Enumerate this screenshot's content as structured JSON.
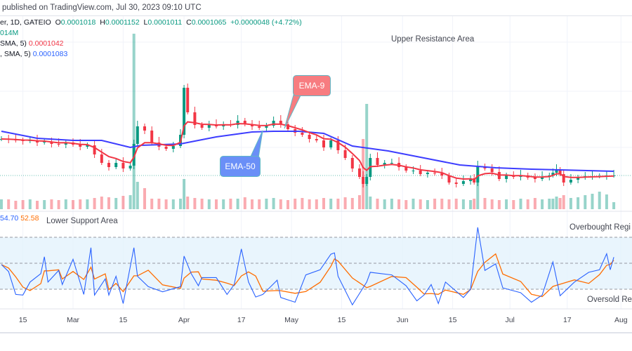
{
  "header": {
    "published": "published on TradingView.com, Jul 30, 2023 09:10 UTC",
    "symbol_tail": "er, 1D, GATEIO",
    "open_label": "O",
    "open": "0.0001018",
    "high_label": "H",
    "high": "0.0001152",
    "low_label": "L",
    "low": "0.0001011",
    "close_label": "C",
    "close": "0.0001065",
    "change": "+0.0000048 (+4.72%)",
    "volume": "014M",
    "ema9_legend": "SMA, 5)",
    "ema9_value": "0.0001042",
    "ema50_legend": ", SMA, 5)",
    "ema50_value": "0.0001083"
  },
  "rsi_legend": {
    "rsi_value": "54.70",
    "rsi_ma_value": "52.58"
  },
  "annotations": {
    "upper": "Upper Resistance Area",
    "lower": "Lower Support Area",
    "overbought": "Overbought Regi",
    "oversold": "Oversold Re",
    "ema9": "EMA-9",
    "ema50": "EMA-50"
  },
  "colors": {
    "up": "#089981",
    "down": "#f23645",
    "ema9": "#f23645",
    "ema50": "#3d3dff",
    "rsi": "#2962ff",
    "rsi_ma": "#ff6d00",
    "rsi_band": "#e3f2fd"
  },
  "chart_data": [
    {
      "type": "candlestick",
      "title": "",
      "x_ticks": [
        "15",
        "Mar",
        "15",
        "Apr",
        "17",
        "May",
        "15",
        "Jun",
        "15",
        "Jul",
        "17",
        "Aug"
      ],
      "last_price": 0.0001065,
      "grid": true,
      "series": [
        {
          "date": "Feb 9",
          "close": 0.0001221,
          "volume": 1.4
        },
        {
          "date": "Feb 11",
          "close": 0.0001218,
          "volume": 1.4
        },
        {
          "date": "Feb 13",
          "close": 0.0001215,
          "volume": 1.2
        },
        {
          "date": "Feb 15",
          "close": 0.0001212,
          "volume": 1.3
        },
        {
          "date": "Feb 17",
          "close": 0.0001215,
          "volume": 1.4
        },
        {
          "date": "Feb 19",
          "close": 0.0001206,
          "volume": 1.2
        },
        {
          "date": "Feb 21",
          "close": 0.0001209,
          "volume": 1.3
        },
        {
          "date": "Feb 23",
          "close": 0.00012,
          "volume": 1.4
        },
        {
          "date": "Feb 25",
          "close": 0.0001197,
          "volume": 1.3
        },
        {
          "date": "Feb 27",
          "close": 0.0001206,
          "volume": 1.4
        },
        {
          "date": "Mar 1",
          "close": 0.0001197,
          "volume": 1.3
        },
        {
          "date": "Mar 3",
          "close": 0.0001188,
          "volume": 1.4
        },
        {
          "date": "Mar 5",
          "close": 0.0001194,
          "volume": 1.4
        },
        {
          "date": "Mar 7",
          "close": 0.0001155,
          "volume": 1.6
        },
        {
          "date": "Mar 9",
          "close": 0.0001119,
          "volume": 1.8
        },
        {
          "date": "Mar 11",
          "close": 0.0001101,
          "volume": 1.7
        },
        {
          "date": "Mar 13",
          "close": 0.0001119,
          "volume": 1.6
        },
        {
          "date": "Mar 15",
          "close": 0.0001095,
          "volume": 1.9
        },
        {
          "date": "Mar 17",
          "close": 0.0001107,
          "volume": 2.0
        },
        {
          "date": "Mar 18",
          "close": 0.00012,
          "volume": 25
        },
        {
          "date": "Mar 19",
          "close": 0.0001275,
          "volume": 3.9
        },
        {
          "date": "Mar 21",
          "close": 0.0001257,
          "volume": 3.0
        },
        {
          "date": "Mar 23",
          "close": 0.0001206,
          "volume": 1.5
        },
        {
          "date": "Mar 25",
          "close": 0.0001188,
          "volume": 1.5
        },
        {
          "date": "Mar 27",
          "close": 0.0001179,
          "volume": 1.4
        },
        {
          "date": "Mar 29",
          "close": 0.0001191,
          "volume": 1.4
        },
        {
          "date": "Mar 31",
          "close": 0.0001239,
          "volume": 1.5
        },
        {
          "date": "Apr 1",
          "close": 0.000144,
          "volume": 4.3
        },
        {
          "date": "Apr 2",
          "close": 0.0001335,
          "volume": 1.8
        },
        {
          "date": "Apr 4",
          "close": 0.0001281,
          "volume": 1.6
        },
        {
          "date": "Apr 6",
          "close": 0.0001269,
          "volume": 1.5
        },
        {
          "date": "Apr 8",
          "close": 0.0001281,
          "volume": 1.4
        },
        {
          "date": "Apr 10",
          "close": 0.0001275,
          "volume": 1.4
        },
        {
          "date": "Apr 12",
          "close": 0.0001284,
          "volume": 1.4
        },
        {
          "date": "Apr 14",
          "close": 0.0001281,
          "volume": 1.5
        },
        {
          "date": "Apr 16",
          "close": 0.0001299,
          "volume": 1.5
        },
        {
          "date": "Apr 18",
          "close": 0.0001284,
          "volume": 1.7
        },
        {
          "date": "Apr 20",
          "close": 0.0001275,
          "volume": 1.4
        },
        {
          "date": "Apr 22",
          "close": 0.0001269,
          "volume": 1.4
        },
        {
          "date": "Apr 24",
          "close": 0.0001278,
          "volume": 1.5
        },
        {
          "date": "Apr 26",
          "close": 0.0001299,
          "volume": 1.6
        },
        {
          "date": "Apr 28",
          "close": 0.0001284,
          "volume": 1.4
        },
        {
          "date": "Apr 30",
          "close": 0.0001263,
          "volume": 1.3
        },
        {
          "date": "May 2",
          "close": 0.0001248,
          "volume": 1.5
        },
        {
          "date": "May 4",
          "close": 0.0001239,
          "volume": 1.6
        },
        {
          "date": "May 6",
          "close": 0.0001221,
          "volume": 1.4
        },
        {
          "date": "May 8",
          "close": 0.0001215,
          "volume": 1.4
        },
        {
          "date": "May 10",
          "close": 0.0001185,
          "volume": 1.6
        },
        {
          "date": "May 12",
          "close": 0.0001215,
          "volume": 1.5
        },
        {
          "date": "May 14",
          "close": 0.0001173,
          "volume": 1.5
        },
        {
          "date": "May 16",
          "close": 0.000114,
          "volume": 1.7
        },
        {
          "date": "May 18",
          "close": 0.0001095,
          "volume": 1.6
        },
        {
          "date": "May 20",
          "close": 0.0001059,
          "volume": 2.0
        },
        {
          "date": "May 21",
          "close": 0.0001029,
          "volume": 10
        },
        {
          "date": "May 22",
          "close": 0.0001059,
          "volume": 15
        },
        {
          "date": "May 23",
          "close": 0.000114,
          "volume": 1.8
        },
        {
          "date": "May 25",
          "close": 0.000111,
          "volume": 1.5
        },
        {
          "date": "May 27",
          "close": 0.0001119,
          "volume": 1.4
        },
        {
          "date": "May 29",
          "close": 0.0001119,
          "volume": 1.5
        },
        {
          "date": "May 31",
          "close": 0.0001101,
          "volume": 1.4
        },
        {
          "date": "Jun 2",
          "close": 0.0001086,
          "volume": 1.3
        },
        {
          "date": "Jun 4",
          "close": 0.0001086,
          "volume": 1.5
        },
        {
          "date": "Jun 6",
          "close": 0.0001071,
          "volume": 1.4
        },
        {
          "date": "Jun 8",
          "close": 0.0001077,
          "volume": 1.3
        },
        {
          "date": "Jun 10",
          "close": 0.0001074,
          "volume": 1.5
        },
        {
          "date": "Jun 12",
          "close": 0.0001065,
          "volume": 1.5
        },
        {
          "date": "Jun 14",
          "close": 0.0001035,
          "volume": 1.4
        },
        {
          "date": "Jun 16",
          "close": 0.0001029,
          "volume": 1.5
        },
        {
          "date": "Jun 18",
          "close": 0.0001041,
          "volume": 1.4
        },
        {
          "date": "Jun 20",
          "close": 0.0001053,
          "volume": 1.3
        },
        {
          "date": "Jun 21",
          "close": 0.0001035,
          "volume": 1.5
        },
        {
          "date": "Jun 22",
          "close": 0.0001104,
          "volume": 4.7
        },
        {
          "date": "Jun 24",
          "close": 0.0001095,
          "volume": 1.6
        },
        {
          "date": "Jun 26",
          "close": 0.000108,
          "volume": 1.4
        },
        {
          "date": "Jun 28",
          "close": 0.000105,
          "volume": 1.3
        },
        {
          "date": "Jun 30",
          "close": 0.0001065,
          "volume": 1.4
        },
        {
          "date": "Jul 2",
          "close": 0.0001059,
          "volume": 1.3
        },
        {
          "date": "Jul 4",
          "close": 0.0001065,
          "volume": 1.5
        },
        {
          "date": "Jul 6",
          "close": 0.0001056,
          "volume": 1.4
        },
        {
          "date": "Jul 8",
          "close": 0.000105,
          "volume": 1.6
        },
        {
          "date": "Jul 10",
          "close": 0.0001059,
          "volume": 1.4
        },
        {
          "date": "Jul 12",
          "close": 0.0001065,
          "volume": 1.5
        },
        {
          "date": "Jul 13",
          "close": 0.0001077,
          "volume": 1.5
        },
        {
          "date": "Jul 14",
          "close": 0.0001089,
          "volume": 1.8
        },
        {
          "date": "Jul 15",
          "close": 0.0001071,
          "volume": 1.6
        },
        {
          "date": "Jul 16",
          "close": 0.0001035,
          "volume": 2.0
        },
        {
          "date": "Jul 18",
          "close": 0.0001047,
          "volume": 1.6
        },
        {
          "date": "Jul 20",
          "close": 0.0001056,
          "volume": 1.7
        },
        {
          "date": "Jul 22",
          "close": 0.0001062,
          "volume": 2.0
        },
        {
          "date": "Jul 24",
          "close": 0.0001062,
          "volume": 2.2
        },
        {
          "date": "Jul 26",
          "close": 0.0001062,
          "volume": 2.5
        },
        {
          "date": "Jul 28",
          "close": 0.0001065,
          "volume": 2.1
        },
        {
          "date": "Jul 30",
          "close": 0.0001065,
          "volume": 1.0
        }
      ],
      "ema50": [
        {
          "date": "Feb 9",
          "value": 0.0001254
        },
        {
          "date": "Feb 19",
          "value": 0.0001224
        },
        {
          "date": "Mar 1",
          "value": 0.0001215
        },
        {
          "date": "Mar 9",
          "value": 0.0001215
        },
        {
          "date": "Mar 17",
          "value": 0.0001185
        },
        {
          "date": "Mar 20",
          "value": 0.0001194
        },
        {
          "date": "Mar 31",
          "value": 0.00012
        },
        {
          "date": "Apr 10",
          "value": 0.000123
        },
        {
          "date": "Apr 20",
          "value": 0.0001251
        },
        {
          "date": "Apr 26",
          "value": 0.0001254
        },
        {
          "date": "May 3",
          "value": 0.0001254
        },
        {
          "date": "May 10",
          "value": 0.0001245
        },
        {
          "date": "May 18",
          "value": 0.0001191
        },
        {
          "date": "May 28",
          "value": 0.000117
        },
        {
          "date": "Jun 7",
          "value": 0.000114
        },
        {
          "date": "Jun 17",
          "value": 0.000111
        },
        {
          "date": "Jun 27",
          "value": 0.0001098
        },
        {
          "date": "Jul 7",
          "value": 0.0001092
        },
        {
          "date": "Jul 17",
          "value": 0.0001088
        },
        {
          "date": "Jul 30",
          "value": 0.0001083
        }
      ]
    },
    {
      "type": "line",
      "title": "",
      "levels": [
        70,
        50,
        30
      ],
      "series": [
        {
          "points": [
            {
              "date": "Feb 9",
              "value": 49
            },
            {
              "date": "Feb 11",
              "value": 43.6
            },
            {
              "date": "Feb 13",
              "value": 26
            },
            {
              "date": "Feb 15",
              "value": 25.5
            },
            {
              "date": "Feb 17",
              "value": 35.5
            },
            {
              "date": "Feb 20",
              "value": 42
            },
            {
              "date": "Feb 21",
              "value": 55
            },
            {
              "date": "Feb 22",
              "value": 35.5
            },
            {
              "date": "Feb 25",
              "value": 44.5
            },
            {
              "date": "Feb 26",
              "value": 33.6
            },
            {
              "date": "Mar 1",
              "value": 53
            },
            {
              "date": "Mar 4",
              "value": 26
            },
            {
              "date": "Mar 6",
              "value": 62
            },
            {
              "date": "Mar 7",
              "value": 25.5
            },
            {
              "date": "Mar 10",
              "value": 38
            },
            {
              "date": "Mar 11",
              "value": 25.5
            },
            {
              "date": "Mar 13",
              "value": 40
            },
            {
              "date": "Mar 15",
              "value": 19
            },
            {
              "date": "Mar 18",
              "value": 62
            },
            {
              "date": "Mar 19",
              "value": 40
            },
            {
              "date": "Mar 22",
              "value": 32
            },
            {
              "date": "Mar 26",
              "value": 28
            },
            {
              "date": "Mar 31",
              "value": 32
            },
            {
              "date": "Apr 1",
              "value": 55.5
            },
            {
              "date": "Apr 3",
              "value": 42
            },
            {
              "date": "Apr 5",
              "value": 32.7
            },
            {
              "date": "Apr 6",
              "value": 39
            },
            {
              "date": "Apr 10",
              "value": 39
            },
            {
              "date": "Apr 13",
              "value": 26
            },
            {
              "date": "Apr 15",
              "value": 33.6
            },
            {
              "date": "Apr 17",
              "value": 61
            },
            {
              "date": "Apr 19",
              "value": 35.5
            },
            {
              "date": "Apr 21",
              "value": 24
            },
            {
              "date": "Apr 23",
              "value": 26
            },
            {
              "date": "Apr 27",
              "value": 37
            },
            {
              "date": "Apr 28",
              "value": 23.6
            },
            {
              "date": "May 2",
              "value": 20
            },
            {
              "date": "May 5",
              "value": 41
            },
            {
              "date": "May 9",
              "value": 45
            },
            {
              "date": "May 12",
              "value": 57
            },
            {
              "date": "May 13",
              "value": 58
            },
            {
              "date": "May 14",
              "value": 40
            },
            {
              "date": "May 18",
              "value": 18
            },
            {
              "date": "May 22",
              "value": 35.5
            },
            {
              "date": "May 23",
              "value": 43
            },
            {
              "date": "May 29",
              "value": 41
            },
            {
              "date": "Jun 2",
              "value": 32.7
            },
            {
              "date": "Jun 5",
              "value": 21
            },
            {
              "date": "Jun 7",
              "value": 25.5
            },
            {
              "date": "Jun 9",
              "value": 33.6
            },
            {
              "date": "Jun 11",
              "value": 19
            },
            {
              "date": "Jun 13",
              "value": 35.5
            },
            {
              "date": "Jun 18",
              "value": 23.6
            },
            {
              "date": "Jun 20",
              "value": 30
            },
            {
              "date": "Jun 22",
              "value": 77.6
            },
            {
              "date": "Jun 24",
              "value": 44.5
            },
            {
              "date": "Jun 27",
              "value": 49.5
            },
            {
              "date": "Jun 29",
              "value": 31
            },
            {
              "date": "Jul 4",
              "value": 27.3
            },
            {
              "date": "Jul 7",
              "value": 20
            },
            {
              "date": "Jul 10",
              "value": 25.5
            },
            {
              "date": "Jul 13",
              "value": 51
            },
            {
              "date": "Jul 15",
              "value": 25
            },
            {
              "date": "Jul 19",
              "value": 35.5
            },
            {
              "date": "Jul 23",
              "value": 43
            },
            {
              "date": "Jul 26",
              "value": 45
            },
            {
              "date": "Jul 28",
              "value": 57.3
            },
            {
              "date": "Jul 29",
              "value": 45
            },
            {
              "date": "Jul 30",
              "value": 54.7
            }
          ]
        }
      ]
    }
  ]
}
